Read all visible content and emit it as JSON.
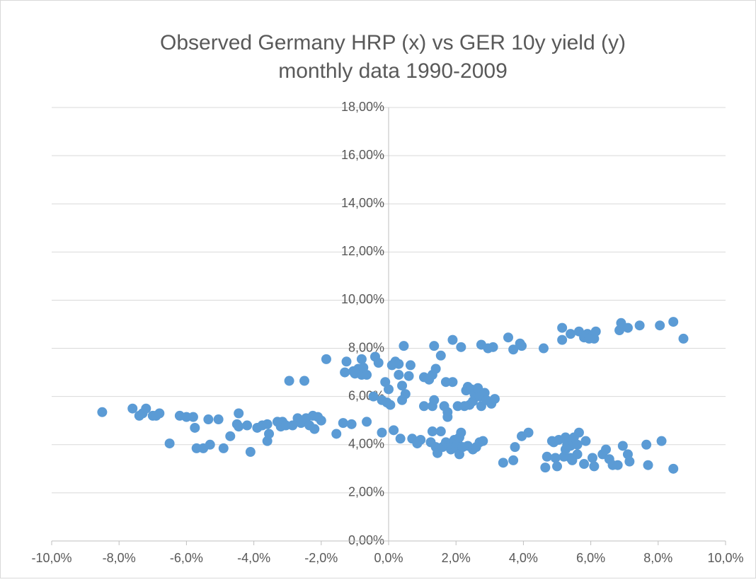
{
  "chart_data": {
    "type": "scatter",
    "title": [
      "Observed Germany HRP (x) vs GER 10y yield (y)",
      "monthly data 1990-2009"
    ],
    "color": "#5b9bd5",
    "grid": true,
    "xlim": [
      -10,
      10
    ],
    "xticks": [
      {
        "value": -10,
        "label": "-10,0%"
      },
      {
        "value": -8,
        "label": "-8,0%"
      },
      {
        "value": -6,
        "label": "-6,0%"
      },
      {
        "value": -4,
        "label": "-4,0%"
      },
      {
        "value": -2,
        "label": "-2,0%"
      },
      {
        "value": 0,
        "label": "0,0%"
      },
      {
        "value": 2,
        "label": "2,0%"
      },
      {
        "value": 4,
        "label": "4,0%"
      },
      {
        "value": 6,
        "label": "6,0%"
      },
      {
        "value": 8,
        "label": "8,0%"
      },
      {
        "value": 10,
        "label": "10,0%"
      }
    ],
    "ylim": [
      0,
      18
    ],
    "yticks": [
      {
        "value": 0,
        "label": "0,00%"
      },
      {
        "value": 2,
        "label": "2,00%"
      },
      {
        "value": 4,
        "label": "4,00%"
      },
      {
        "value": 6,
        "label": "6,00%"
      },
      {
        "value": 8,
        "label": "8,00%"
      },
      {
        "value": 10,
        "label": "10,00%"
      },
      {
        "value": 12,
        "label": "12,00%"
      },
      {
        "value": 14,
        "label": "14,00%"
      },
      {
        "value": 16,
        "label": "16,00%"
      },
      {
        "value": 18,
        "label": "18,00%"
      }
    ],
    "x": [
      -8.5,
      -7.6,
      -7.4,
      -7.3,
      -7.2,
      -7.0,
      -6.9,
      -6.8,
      -6.5,
      -6.2,
      -6.0,
      -5.8,
      -5.75,
      -5.7,
      -5.5,
      -5.35,
      -5.3,
      -5.05,
      -4.9,
      -4.7,
      -4.5,
      -4.45,
      -4.45,
      -4.2,
      -4.1,
      -3.9,
      -3.75,
      -3.6,
      -3.55,
      -3.6,
      -3.3,
      -3.2,
      -3.15,
      -2.95,
      -3.05,
      -2.85,
      -2.7,
      -2.6,
      -2.5,
      -2.45,
      -2.35,
      -2.25,
      -2.2,
      -2.1,
      -2.0,
      -1.85,
      -1.55,
      -1.35,
      -1.3,
      -1.25,
      -1.1,
      -1.05,
      -1.0,
      -0.9,
      -0.8,
      -0.8,
      -0.75,
      -0.65,
      -0.65,
      -0.45,
      -0.4,
      -0.3,
      -0.2,
      -0.2,
      -0.1,
      -0.05,
      0.0,
      0.05,
      0.1,
      0.15,
      0.2,
      0.3,
      0.3,
      0.35,
      0.4,
      0.4,
      0.45,
      0.5,
      0.6,
      0.65,
      0.7,
      0.85,
      0.95,
      1.05,
      1.05,
      1.2,
      1.25,
      1.3,
      1.3,
      1.3,
      1.35,
      1.35,
      1.4,
      1.4,
      1.45,
      1.55,
      1.55,
      1.6,
      1.65,
      1.7,
      1.7,
      1.75,
      1.75,
      1.8,
      1.85,
      1.85,
      1.9,
      1.9,
      1.95,
      2.0,
      2.05,
      2.05,
      2.1,
      2.1,
      2.15,
      2.15,
      2.2,
      2.25,
      2.3,
      2.35,
      2.35,
      2.4,
      2.45,
      2.5,
      2.5,
      2.55,
      2.6,
      2.65,
      2.65,
      2.7,
      2.7,
      2.75,
      2.75,
      2.8,
      2.85,
      2.9,
      2.95,
      3.05,
      3.1,
      3.15,
      3.4,
      3.55,
      3.7,
      3.7,
      3.75,
      3.9,
      3.95,
      3.95,
      4.15,
      4.6,
      4.85,
      4.9,
      4.65,
      4.7,
      4.95,
      5.0,
      5.05,
      5.15,
      5.15,
      5.2,
      5.25,
      5.25,
      5.3,
      5.35,
      5.4,
      5.4,
      5.4,
      5.45,
      5.5,
      5.5,
      5.6,
      5.6,
      5.65,
      5.65,
      5.8,
      5.8,
      5.85,
      5.9,
      5.95,
      6.05,
      6.1,
      6.1,
      6.15,
      6.35,
      6.45,
      6.55,
      6.65,
      6.8,
      6.85,
      6.9,
      6.95,
      7.1,
      7.1,
      7.15,
      7.45,
      7.65,
      7.7,
      8.05,
      8.1,
      8.45,
      8.45,
      8.75
    ],
    "y": [
      5.35,
      5.5,
      5.2,
      5.3,
      5.5,
      5.2,
      5.2,
      5.3,
      4.05,
      5.2,
      5.15,
      5.15,
      4.7,
      3.85,
      3.85,
      5.05,
      4.0,
      5.05,
      3.85,
      4.35,
      4.85,
      5.3,
      4.75,
      4.8,
      3.7,
      4.7,
      4.8,
      4.15,
      4.45,
      4.85,
      4.95,
      4.75,
      4.95,
      6.65,
      4.8,
      4.8,
      5.1,
      4.9,
      6.65,
      5.1,
      4.8,
      5.2,
      4.65,
      5.15,
      5.0,
      7.55,
      4.45,
      4.9,
      7.0,
      7.45,
      4.85,
      7.05,
      6.95,
      7.15,
      6.9,
      7.55,
      7.2,
      6.9,
      4.95,
      6.0,
      7.65,
      7.4,
      4.5,
      5.85,
      6.6,
      5.75,
      6.3,
      5.65,
      7.3,
      4.6,
      7.45,
      6.9,
      7.35,
      4.25,
      6.45,
      5.85,
      8.1,
      6.1,
      6.85,
      7.3,
      4.25,
      4.05,
      4.2,
      5.6,
      6.8,
      6.7,
      4.1,
      5.6,
      6.9,
      4.55,
      8.1,
      5.85,
      7.15,
      3.9,
      3.65,
      4.55,
      7.7,
      3.9,
      5.6,
      4.1,
      6.6,
      5.35,
      5.15,
      4.0,
      3.8,
      4.05,
      8.35,
      6.6,
      4.2,
      3.9,
      5.6,
      4.05,
      3.6,
      4.3,
      8.05,
      4.5,
      3.9,
      5.6,
      6.25,
      3.95,
      6.4,
      5.65,
      6.3,
      3.8,
      5.8,
      6.1,
      3.9,
      6.3,
      6.35,
      6.0,
      4.1,
      5.6,
      8.15,
      4.15,
      6.15,
      5.85,
      8.0,
      5.7,
      8.05,
      5.9,
      3.25,
      8.45,
      3.35,
      7.95,
      3.9,
      8.2,
      8.1,
      4.35,
      4.5,
      8.0,
      4.15,
      4.1,
      3.05,
      3.5,
      3.45,
      3.1,
      4.2,
      8.35,
      8.85,
      3.5,
      3.8,
      4.3,
      4.0,
      4.15,
      8.6,
      3.45,
      3.95,
      3.35,
      4.05,
      4.3,
      3.6,
      4.0,
      8.7,
      4.5,
      8.45,
      3.2,
      4.15,
      8.6,
      8.4,
      3.45,
      3.1,
      8.4,
      8.7,
      3.6,
      3.8,
      3.4,
      3.15,
      3.15,
      8.75,
      9.05,
      3.95,
      8.85,
      3.6,
      3.3,
      8.95,
      4.0,
      3.15,
      8.95,
      4.15,
      9.1,
      3.0,
      8.4
    ]
  }
}
